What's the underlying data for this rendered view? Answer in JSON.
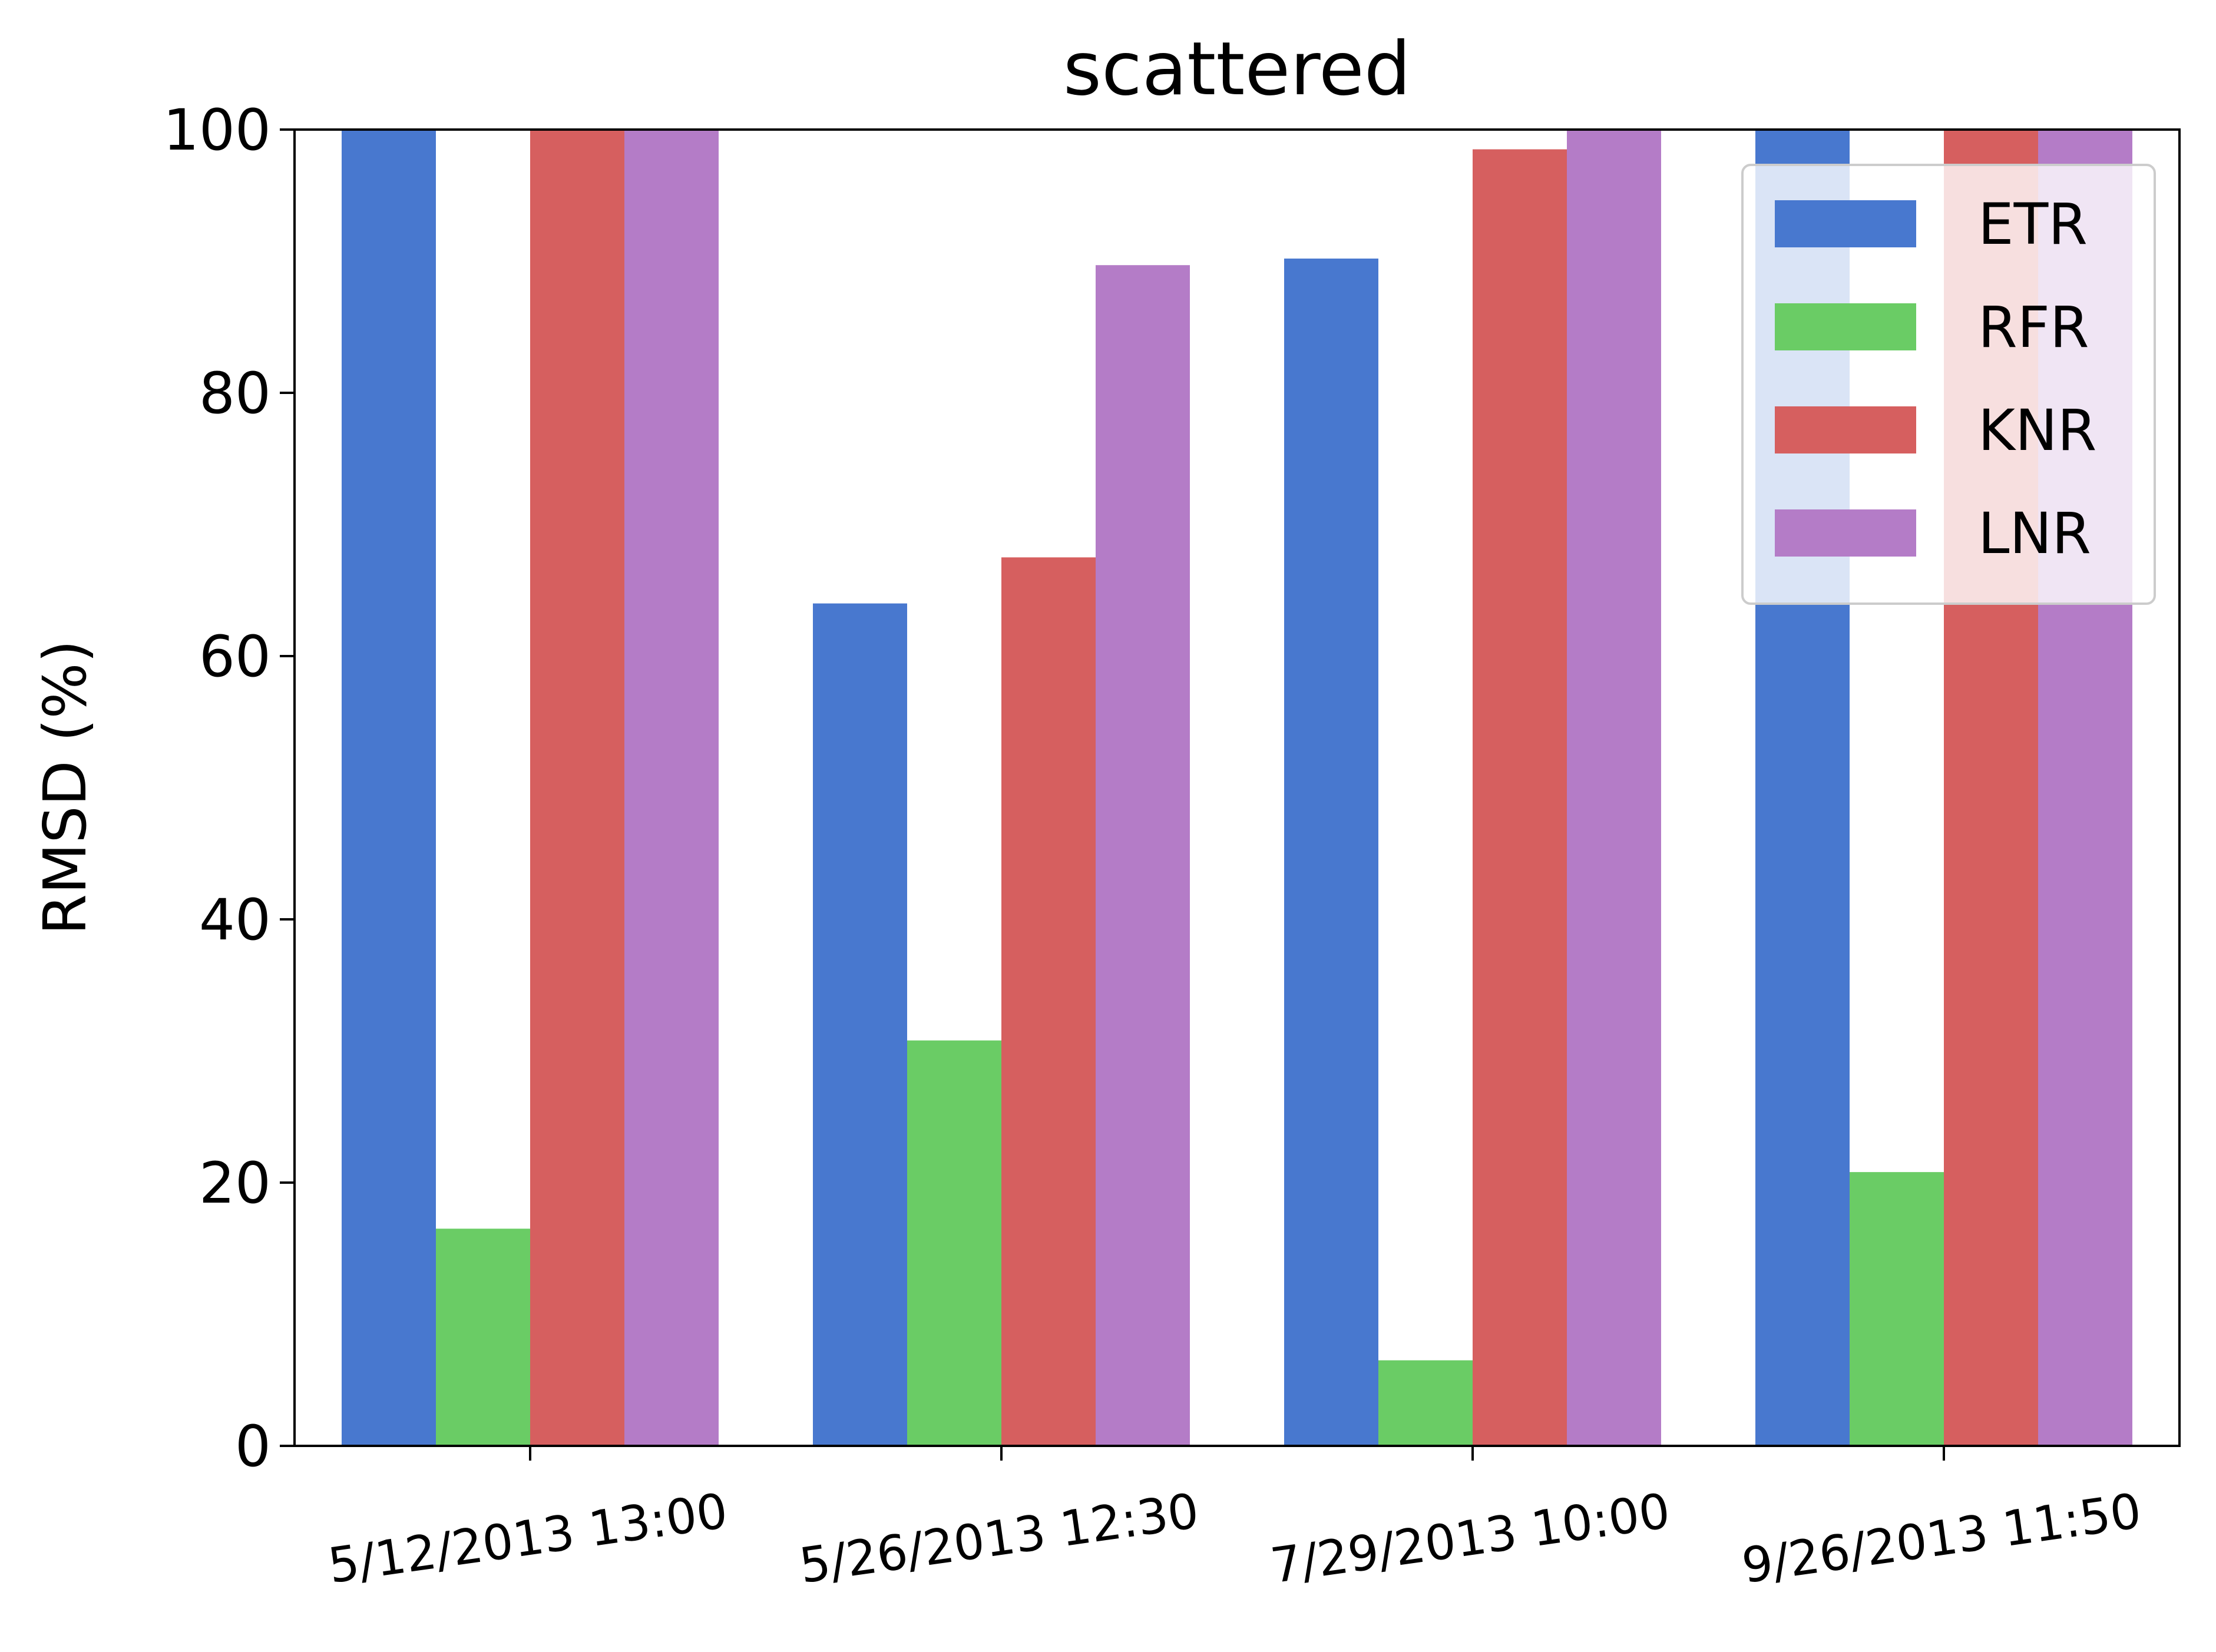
{
  "chart_data": {
    "type": "bar",
    "title": "scattered",
    "xlabel": "",
    "ylabel": "RMSD (%)",
    "ylim": [
      0,
      100
    ],
    "yticks": [
      0,
      20,
      40,
      60,
      80,
      100
    ],
    "categories": [
      "5/12/2013 13:00",
      "5/26/2013 12:30",
      "7/29/2013 10:00",
      "9/26/2013 11:50"
    ],
    "series": [
      {
        "name": "ETR",
        "color": "#4878cf",
        "values": [
          100,
          64.0,
          90.2,
          100
        ]
      },
      {
        "name": "RFR",
        "color": "#6acc65",
        "values": [
          16.5,
          30.8,
          6.5,
          20.8
        ]
      },
      {
        "name": "KNR",
        "color": "#d65f5f",
        "values": [
          100,
          67.5,
          98.5,
          100
        ]
      },
      {
        "name": "LNR",
        "color": "#b47cc7",
        "values": [
          100,
          89.7,
          100,
          100
        ]
      }
    ],
    "grid": false,
    "legend_position": "top-right"
  }
}
